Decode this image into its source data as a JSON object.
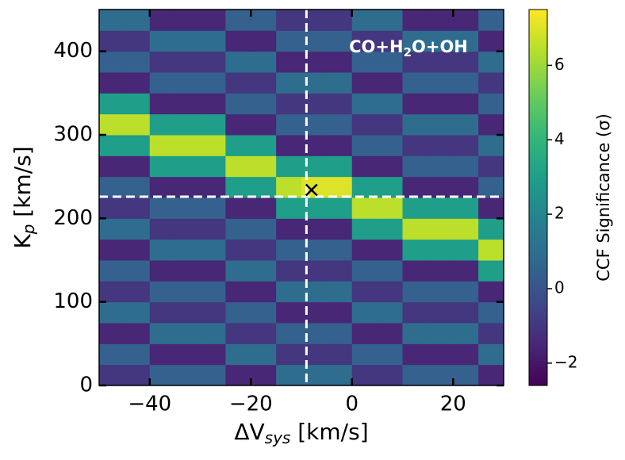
{
  "chart_data": {
    "type": "heatmap",
    "x": [
      -47.5,
      -42.5,
      -37.5,
      -32.5,
      -27.5,
      -22.5,
      -17.5,
      -12.5,
      -7.5,
      -2.5,
      2.5,
      7.5,
      12.5,
      17.5,
      22.5,
      27.5
    ],
    "y": [
      12.5,
      37.5,
      62.5,
      87.5,
      112.5,
      137.5,
      162.5,
      187.5,
      212.5,
      237.5,
      262.5,
      287.5,
      312.5,
      337.5,
      362.5,
      387.5,
      412.5,
      437.5
    ],
    "z": [
      [
        -1,
        -1,
        0.5,
        0.5,
        0.5,
        -1.5,
        -1.5,
        1,
        1,
        1,
        -1,
        -1,
        0.5,
        0.5,
        0.5,
        -1.5
      ],
      [
        0.5,
        0.5,
        -1.5,
        -1.5,
        -1.5,
        1,
        1,
        -1,
        -1,
        -1,
        0.5,
        0.5,
        -1.5,
        -1.5,
        -1.5,
        1
      ],
      [
        -1.5,
        -1.5,
        1,
        1,
        1,
        -1,
        -1,
        0.5,
        0.5,
        0.5,
        -1.5,
        -1.5,
        1,
        1,
        1,
        -1
      ],
      [
        1,
        1,
        -1,
        -1,
        -1,
        0.5,
        0.5,
        -1.5,
        -1.5,
        -1.5,
        1,
        1,
        -1,
        -1,
        -1,
        0.5
      ],
      [
        -1,
        -1,
        0.5,
        0.5,
        0.5,
        -1.5,
        -1.5,
        1,
        1,
        1,
        -1,
        -1,
        0.5,
        0.5,
        0.5,
        -1.5
      ],
      [
        0.5,
        0.5,
        -1.5,
        -1.5,
        -1.5,
        1,
        1,
        -1,
        -1,
        -1,
        0.5,
        0.5,
        -1.5,
        -1.5,
        -1.5,
        3
      ],
      [
        -1.5,
        -1.5,
        1,
        1,
        1,
        -1,
        -1,
        0.5,
        0.5,
        0.5,
        -1.5,
        -1.5,
        3,
        3,
        3,
        6.5
      ],
      [
        1,
        1,
        -1,
        -1,
        -1,
        0.5,
        0.5,
        -1.5,
        -1.5,
        -1.5,
        3,
        3,
        6.5,
        6.5,
        6.5,
        3
      ],
      [
        -1,
        -1,
        0.5,
        0.5,
        0.5,
        -1.5,
        -1.5,
        3,
        3,
        3,
        6.5,
        6.5,
        3,
        3,
        3,
        -1.5
      ],
      [
        0.5,
        0.5,
        -1.5,
        -1.5,
        -1.5,
        3,
        3,
        6.5,
        7,
        7,
        3,
        3,
        -1.5,
        -1.5,
        -1.5,
        0.5
      ],
      [
        -1.5,
        -1.5,
        3,
        3,
        3,
        6.5,
        6.5,
        3,
        3,
        3,
        -1.5,
        -1.5,
        0.5,
        0.5,
        0.5,
        -1
      ],
      [
        3,
        3,
        6.5,
        6.5,
        6.5,
        3,
        3,
        -1.5,
        -1.5,
        -1.5,
        0.5,
        0.5,
        -1,
        -1,
        -1,
        1
      ],
      [
        6.5,
        6.5,
        3,
        3,
        3,
        -1.5,
        -1.5,
        0.5,
        0.5,
        0.5,
        -1,
        -1,
        1,
        1,
        1,
        -1.5
      ],
      [
        3,
        3,
        -1.5,
        -1.5,
        -1.5,
        0.5,
        0.5,
        -1,
        -1,
        -1,
        1,
        1,
        -1.5,
        -1.5,
        -1.5,
        0.5
      ],
      [
        -1.5,
        -1.5,
        0.5,
        0.5,
        0.5,
        -1,
        -1,
        1,
        1,
        1,
        -1.5,
        -1.5,
        0.5,
        0.5,
        0.5,
        -1
      ],
      [
        0.5,
        0.5,
        -1,
        -1,
        -1,
        1,
        1,
        -1.5,
        -1.5,
        -1.5,
        0.5,
        0.5,
        -1,
        -1,
        -1,
        1
      ],
      [
        -1,
        -1,
        1,
        1,
        1,
        -1.5,
        -1.5,
        0.5,
        0.5,
        0.5,
        -1,
        -1,
        1,
        1,
        1,
        -1.5
      ],
      [
        1,
        1,
        -1.5,
        -1.5,
        -1.5,
        0.5,
        0.5,
        -1,
        -1,
        -1,
        1,
        1,
        -1.5,
        -1.5,
        -1.5,
        0.5
      ]
    ],
    "colormap": "viridis",
    "clim": [
      -2.6,
      7.5
    ],
    "cticks": [
      {
        "value": -2,
        "label": "−2"
      },
      0,
      2,
      4,
      6
    ],
    "colorbar_label": "CCF Significance (σ)",
    "xlim": [
      -50,
      30
    ],
    "xticks": [
      {
        "value": -40,
        "label": "−40"
      },
      {
        "value": -20,
        "label": "−20"
      },
      0,
      20
    ],
    "ylim": [
      0,
      450
    ],
    "yticks": [
      0,
      100,
      200,
      300,
      400
    ],
    "xlabel": {
      "main": "ΔV",
      "sub": "sys",
      "unit": " [km/s]"
    },
    "ylabel": {
      "main": "K",
      "sub": "p",
      "unit": " [km/s]"
    },
    "annotation": {
      "main": "CO+H",
      "sub": "2",
      "rest": "O+OH"
    },
    "crosshair": {
      "x": -9,
      "y": 226
    },
    "best_fit": {
      "x": -8,
      "y": 234
    }
  }
}
